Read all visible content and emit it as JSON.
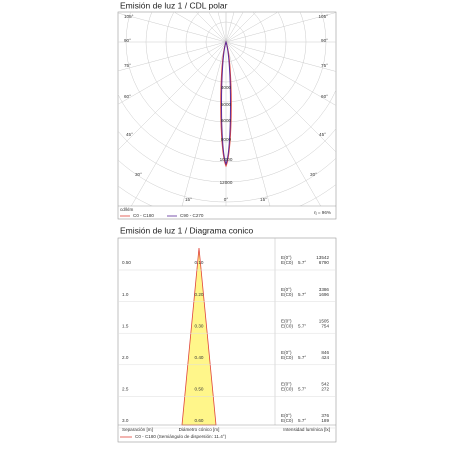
{
  "polar": {
    "title": "Emisión de luz 1 / CDL polar",
    "angle_labels": [
      "105°",
      "90°",
      "75°",
      "60°",
      "45°",
      "30°",
      "15°"
    ],
    "zero_label": "0°",
    "radial_labels": [
      "4000",
      "5000",
      "6000",
      "8000",
      "10000",
      "12000"
    ],
    "unit": "cd/klm",
    "efficiency": "η = 96%",
    "legend": [
      {
        "name": "C0 - C180",
        "color": "#e0443a"
      },
      {
        "name": "C90 - C270",
        "color": "#5a2a9a"
      }
    ]
  },
  "conic": {
    "title": "Emisión de luz 1 / Diagrama conico",
    "rows": [
      {
        "separation": "0.50",
        "diameter": "0.10",
        "e0_label": "E(0°)",
        "ec_label": "E(C0)",
        "angle": "5.7°",
        "e0": "13542",
        "ec": "6790"
      },
      {
        "separation": "1.0",
        "diameter": "0.20",
        "e0_label": "E(0°)",
        "ec_label": "E(C0)",
        "angle": "5.7°",
        "e0": "3386",
        "ec": "1696"
      },
      {
        "separation": "1.5",
        "diameter": "0.30",
        "e0_label": "E(0°)",
        "ec_label": "E(C0)",
        "angle": "5.7°",
        "e0": "1505",
        "ec": "754"
      },
      {
        "separation": "2.0",
        "diameter": "0.40",
        "e0_label": "E(0°)",
        "ec_label": "E(C0)",
        "angle": "5.7°",
        "e0": "846",
        "ec": "424"
      },
      {
        "separation": "2.5",
        "diameter": "0.50",
        "e0_label": "E(0°)",
        "ec_label": "E(C0)",
        "angle": "5.7°",
        "e0": "542",
        "ec": "272"
      },
      {
        "separation": "3.0",
        "diameter": "0.60",
        "e0_label": "E(0°)",
        "ec_label": "E(C0)",
        "angle": "5.7°",
        "e0": "376",
        "ec": "189"
      }
    ],
    "footer": [
      "Separación [m]",
      "Diámetro cónico [m]",
      "Intensidad lumínica [lx]"
    ],
    "legend": "C0 - C180 (Semiángulo de dispersión: 11.4°)"
  }
}
